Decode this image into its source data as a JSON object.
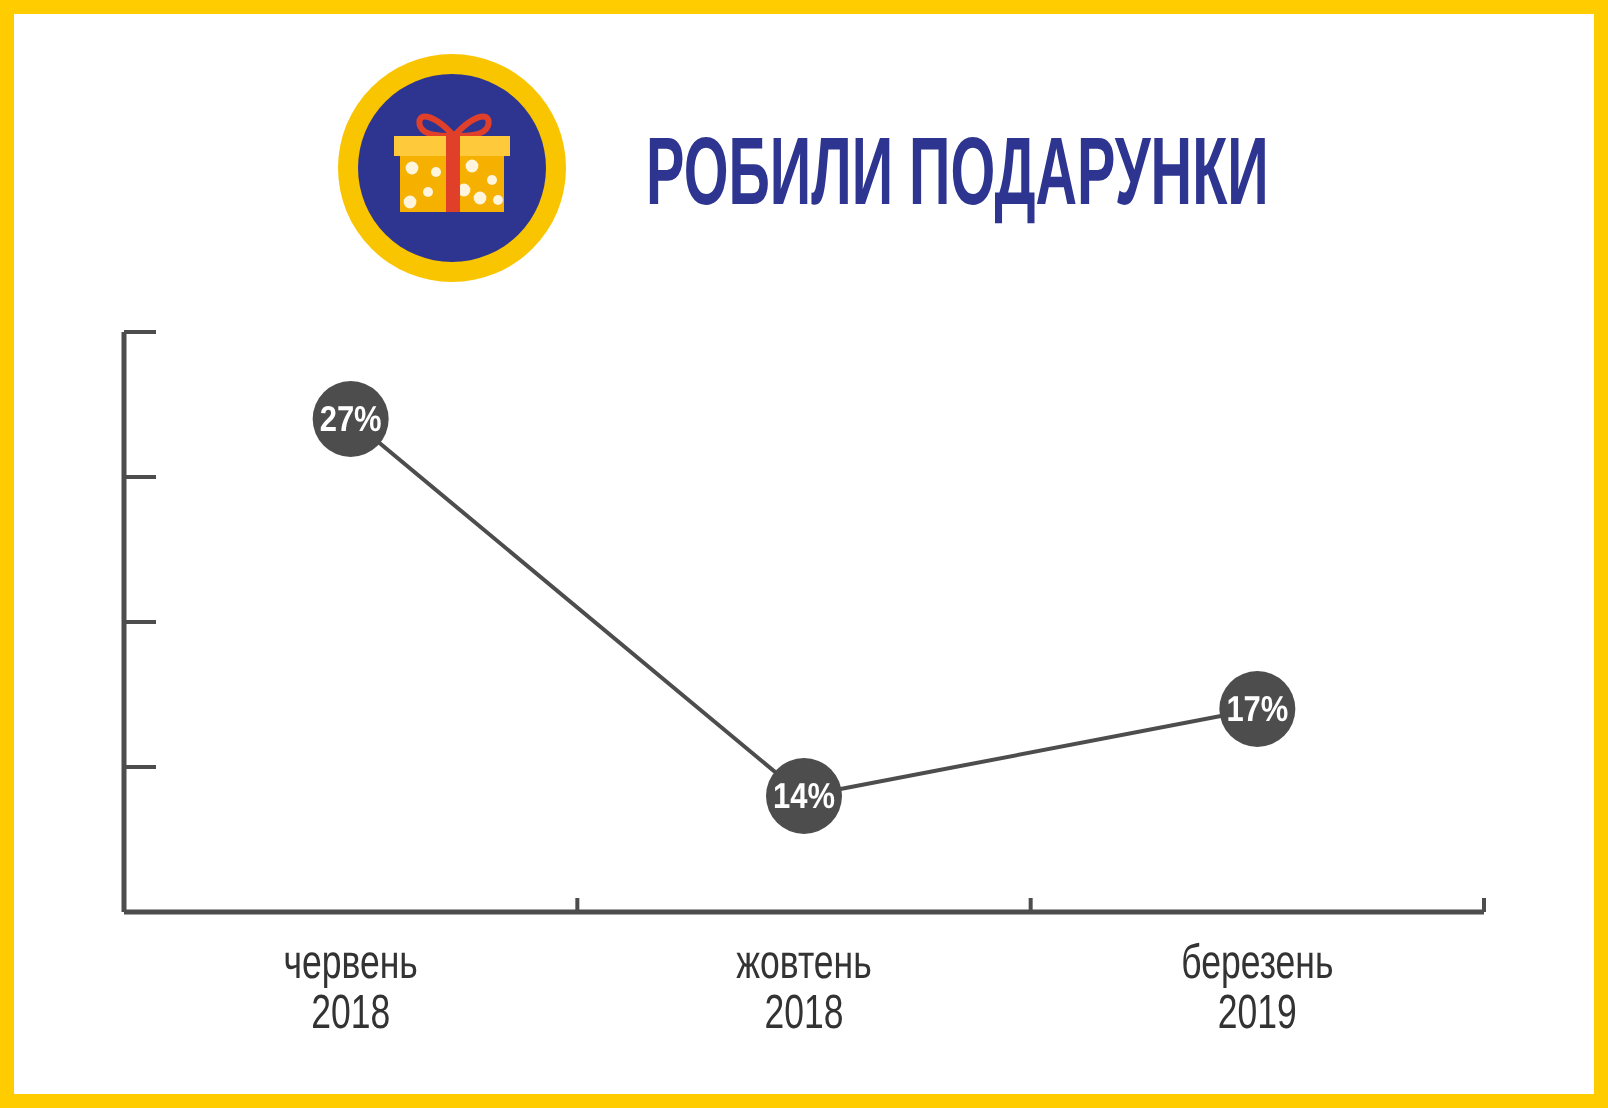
{
  "chart_data": {
    "type": "line",
    "title": "РОБИЛИ ПОДАРУНКИ",
    "categories": [
      "червень 2018",
      "жовтень 2018",
      "березень 2019"
    ],
    "values": [
      27,
      14,
      17
    ],
    "value_labels": [
      "27%",
      "14%",
      "17%"
    ],
    "color": "#4d4d4d",
    "ylim": [
      10,
      30
    ],
    "yticks": [
      {
        "value": 10,
        "label": null
      },
      {
        "value": 15,
        "label": null
      },
      {
        "value": 20,
        "label": null
      },
      {
        "value": 25,
        "label": null
      },
      {
        "value": 30,
        "label": null
      }
    ],
    "tick_labels": "x",
    "marker": "circle"
  }
}
